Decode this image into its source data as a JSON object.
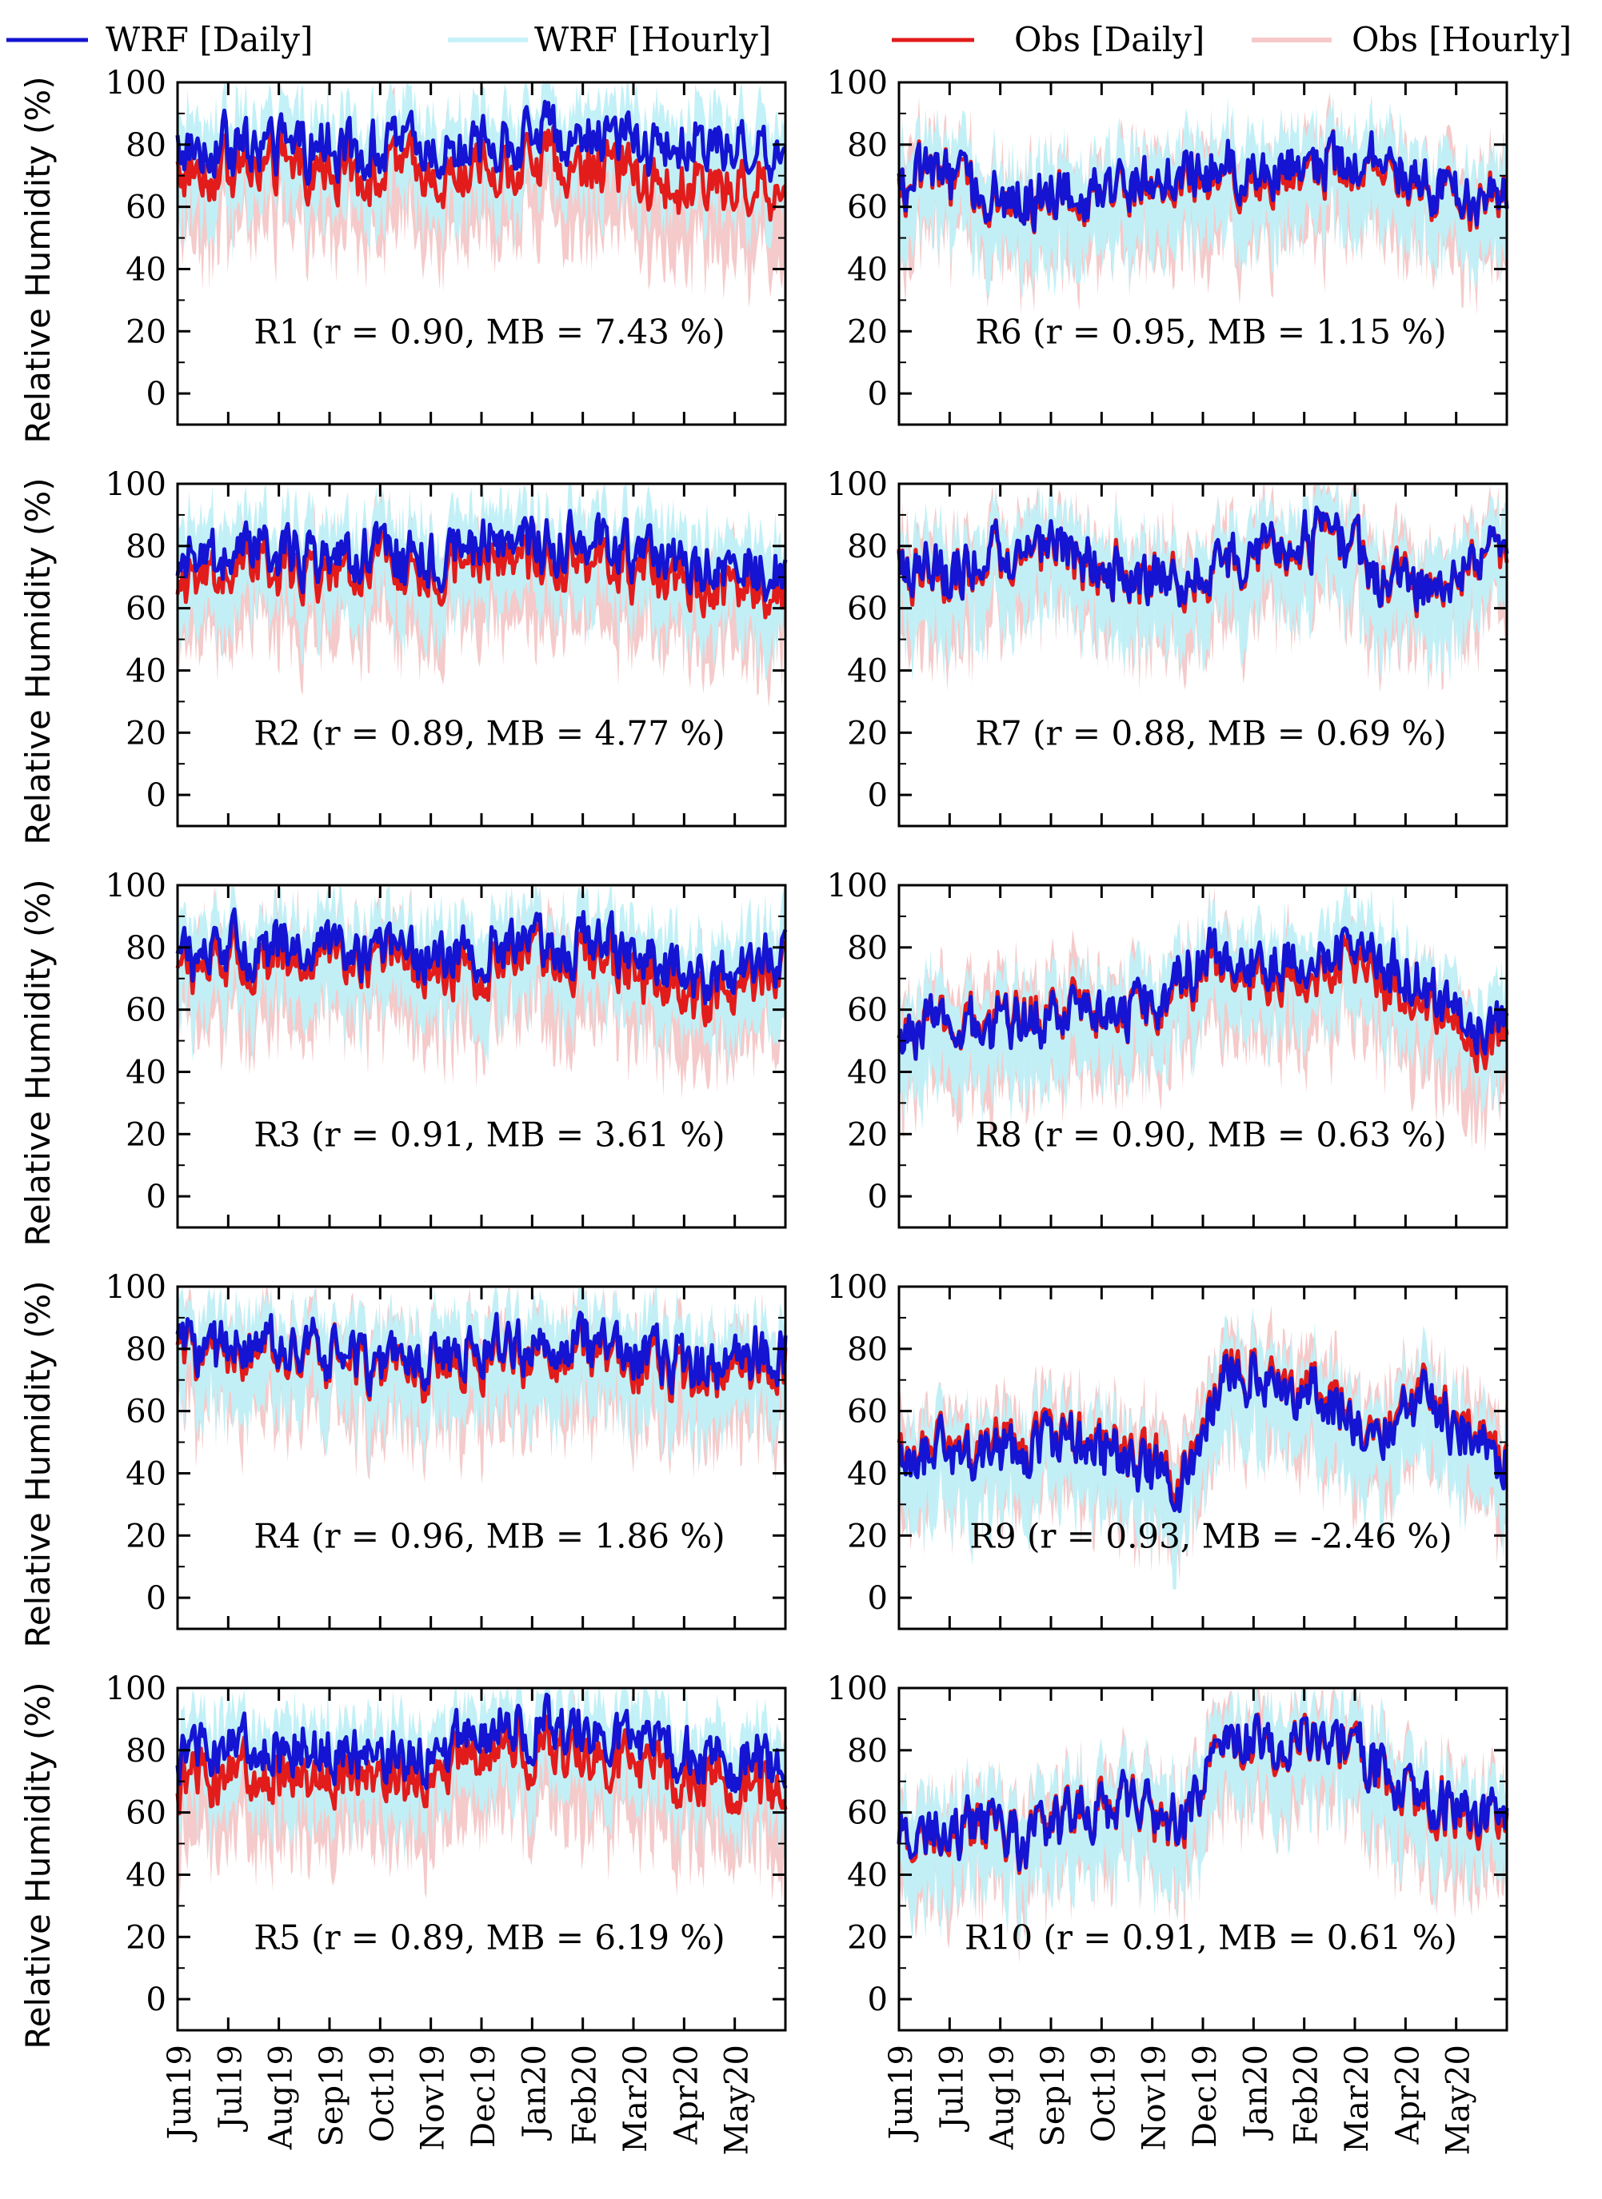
{
  "chart_data": {
    "type": "line",
    "title": "",
    "ylabel": "Relative Humidity (%)",
    "xlabel": "",
    "ylim": [
      -10,
      100
    ],
    "yticks": [
      0,
      20,
      40,
      60,
      80,
      100
    ],
    "months": [
      "Jun19",
      "Jul19",
      "Aug19",
      "Sep19",
      "Oct19",
      "Nov19",
      "Dec19",
      "Jan20",
      "Feb20",
      "Mar20",
      "Apr20",
      "May20"
    ],
    "legend": [
      {
        "label": "WRF [Daily]",
        "color": "#1414d2"
      },
      {
        "label": "WRF [Hourly]",
        "color": "#c8f2f8"
      },
      {
        "label": "Obs [Daily]",
        "color": "#e21b1b"
      },
      {
        "label": "Obs [Hourly]",
        "color": "#f6c8c8"
      }
    ],
    "colors": {
      "wrf_daily": "#1414d2",
      "wrf_hourly": "#bff0f7",
      "obs_daily": "#e21b1b",
      "obs_hourly": "#f4c4c4"
    },
    "panels": [
      {
        "region": "R1",
        "label": "R1 (r = 0.90, MB = 7.43 %)",
        "r": 0.9,
        "mb": 7.43,
        "wrf_monthly_mean": [
          79,
          80,
          79,
          78,
          80,
          78,
          82,
          84,
          82,
          80,
          79,
          79
        ],
        "obs_monthly_mean": [
          72,
          73,
          72,
          71,
          73,
          70,
          74,
          75,
          73,
          67,
          66,
          67
        ]
      },
      {
        "region": "R2",
        "label": "R2 (r = 0.89, MB = 4.77 %)",
        "r": 0.89,
        "mb": 4.77,
        "wrf_monthly_mean": [
          76,
          78,
          77,
          75,
          76,
          78,
          82,
          81,
          80,
          76,
          72,
          72
        ],
        "obs_monthly_mean": [
          70,
          73,
          72,
          71,
          72,
          73,
          76,
          76,
          74,
          70,
          66,
          67
        ]
      },
      {
        "region": "R3",
        "label": "R3 (r = 0.91, MB = 3.61 %)",
        "r": 0.91,
        "mb": 3.61,
        "wrf_monthly_mean": [
          78,
          80,
          80,
          79,
          77,
          77,
          80,
          82,
          80,
          74,
          70,
          76
        ],
        "obs_monthly_mean": [
          74,
          76,
          77,
          76,
          73,
          72,
          76,
          78,
          75,
          68,
          64,
          72
        ]
      },
      {
        "region": "R4",
        "label": "R4 (r = 0.96, MB = 1.86 %)",
        "r": 0.96,
        "mb": 1.86,
        "wrf_monthly_mean": [
          79,
          79,
          79,
          79,
          73,
          78,
          80,
          82,
          80,
          77,
          74,
          78
        ],
        "obs_monthly_mean": [
          77,
          77,
          77,
          77,
          71,
          75,
          78,
          80,
          77,
          74,
          71,
          75
        ]
      },
      {
        "region": "R5",
        "label": "R5 (r = 0.89, MB = 6.19 %)",
        "r": 0.89,
        "mb": 6.19,
        "wrf_monthly_mean": [
          79,
          81,
          81,
          81,
          79,
          82,
          86,
          88,
          85,
          82,
          77,
          78
        ],
        "obs_monthly_mean": [
          70,
          73,
          73,
          74,
          73,
          76,
          80,
          81,
          77,
          74,
          70,
          70
        ]
      },
      {
        "region": "R6",
        "label": "R6 (r = 0.95, MB = 1.15 %)",
        "r": 0.95,
        "mb": 1.15,
        "wrf_monthly_mean": [
          69,
          66,
          61,
          64,
          67,
          70,
          72,
          74,
          74,
          76,
          66,
          63
        ],
        "obs_monthly_mean": [
          68,
          65,
          60,
          63,
          66,
          68,
          70,
          72,
          73,
          74,
          65,
          62
        ]
      },
      {
        "region": "R7",
        "label": "R7 (r = 0.88, MB = 0.69 %)",
        "r": 0.88,
        "mb": 0.69,
        "wrf_monthly_mean": [
          71,
          75,
          78,
          77,
          70,
          68,
          76,
          80,
          84,
          70,
          64,
          78
        ],
        "obs_monthly_mean": [
          70,
          74,
          77,
          76,
          70,
          68,
          75,
          79,
          83,
          70,
          64,
          77
        ]
      },
      {
        "region": "R8",
        "label": "R8 (r = 0.90, MB = 0.63 %)",
        "r": 0.9,
        "mb": 0.63,
        "wrf_monthly_mean": [
          53,
          55,
          57,
          60,
          58,
          70,
          78,
          76,
          80,
          76,
          64,
          55
        ],
        "obs_monthly_mean": [
          53,
          56,
          58,
          61,
          57,
          68,
          76,
          72,
          76,
          70,
          60,
          51
        ]
      },
      {
        "region": "R9",
        "label": "R9 (r = 0.93, MB = -2.46 %)",
        "r": 0.93,
        "mb": -2.46,
        "wrf_monthly_mean": [
          45,
          45,
          47,
          50,
          45,
          35,
          74,
          68,
          62,
          55,
          63,
          45
        ],
        "obs_monthly_mean": [
          47,
          47,
          49,
          51,
          47,
          38,
          75,
          70,
          64,
          56,
          64,
          47
        ]
      },
      {
        "region": "R10",
        "label": "R10 (r = 0.91, MB = 0.61 %)",
        "r": 0.91,
        "mb": 0.61,
        "wrf_monthly_mean": [
          56,
          56,
          50,
          62,
          63,
          55,
          82,
          84,
          86,
          72,
          65,
          60
        ],
        "obs_monthly_mean": [
          55,
          55,
          50,
          62,
          63,
          55,
          81,
          83,
          86,
          71,
          64,
          58
        ]
      }
    ]
  }
}
